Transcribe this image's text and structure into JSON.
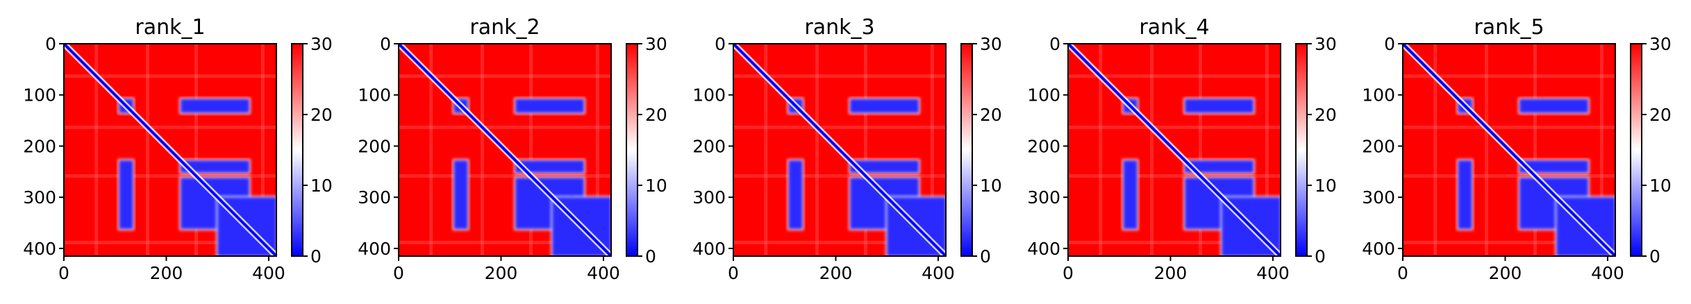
{
  "colors": {
    "low": "#0000ff",
    "mid": "#ffffff",
    "high": "#ff0000"
  },
  "chart_data": [
    {
      "type": "heatmap",
      "title": "rank_1",
      "xlim": [
        0,
        415
      ],
      "ylim": [
        415,
        0
      ],
      "xticks": [
        "0",
        "200",
        "400"
      ],
      "yticks": [
        "0",
        "100",
        "200",
        "300",
        "400"
      ],
      "colorbar": {
        "range": [
          0,
          30
        ],
        "ticks": [
          "0",
          "10",
          "20",
          "30"
        ],
        "colormap": "bwr"
      },
      "blocks": [
        {
          "x": [
            108,
            135
          ],
          "y": [
            108,
            135
          ]
        },
        {
          "x": [
            228,
            362
          ],
          "y": [
            108,
            135
          ]
        },
        {
          "x": [
            108,
            135
          ],
          "y": [
            228,
            362
          ]
        },
        {
          "x": [
            228,
            362
          ],
          "y": [
            228,
            252
          ]
        },
        {
          "x": [
            228,
            362
          ],
          "y": [
            262,
            362
          ]
        },
        {
          "x": [
            300,
            415
          ],
          "y": [
            300,
            415
          ]
        }
      ]
    },
    {
      "type": "heatmap",
      "title": "rank_2",
      "xlim": [
        0,
        415
      ],
      "ylim": [
        415,
        0
      ],
      "xticks": [
        "0",
        "200",
        "400"
      ],
      "yticks": [
        "0",
        "100",
        "200",
        "300",
        "400"
      ],
      "colorbar": {
        "range": [
          0,
          30
        ],
        "ticks": [
          "0",
          "10",
          "20",
          "30"
        ],
        "colormap": "bwr"
      },
      "blocks": [
        {
          "x": [
            108,
            135
          ],
          "y": [
            108,
            135
          ]
        },
        {
          "x": [
            228,
            362
          ],
          "y": [
            108,
            135
          ]
        },
        {
          "x": [
            108,
            135
          ],
          "y": [
            228,
            362
          ]
        },
        {
          "x": [
            228,
            362
          ],
          "y": [
            228,
            252
          ]
        },
        {
          "x": [
            228,
            362
          ],
          "y": [
            262,
            362
          ]
        },
        {
          "x": [
            300,
            415
          ],
          "y": [
            300,
            415
          ]
        }
      ]
    },
    {
      "type": "heatmap",
      "title": "rank_3",
      "xlim": [
        0,
        415
      ],
      "ylim": [
        415,
        0
      ],
      "xticks": [
        "0",
        "200",
        "400"
      ],
      "yticks": [
        "0",
        "100",
        "200",
        "300",
        "400"
      ],
      "colorbar": {
        "range": [
          0,
          30
        ],
        "ticks": [
          "0",
          "10",
          "20",
          "30"
        ],
        "colormap": "bwr"
      },
      "blocks": [
        {
          "x": [
            108,
            135
          ],
          "y": [
            108,
            135
          ]
        },
        {
          "x": [
            228,
            362
          ],
          "y": [
            108,
            135
          ]
        },
        {
          "x": [
            108,
            135
          ],
          "y": [
            228,
            362
          ]
        },
        {
          "x": [
            228,
            362
          ],
          "y": [
            228,
            252
          ]
        },
        {
          "x": [
            228,
            362
          ],
          "y": [
            262,
            362
          ]
        },
        {
          "x": [
            300,
            415
          ],
          "y": [
            300,
            415
          ]
        }
      ]
    },
    {
      "type": "heatmap",
      "title": "rank_4",
      "xlim": [
        0,
        415
      ],
      "ylim": [
        415,
        0
      ],
      "xticks": [
        "0",
        "200",
        "400"
      ],
      "yticks": [
        "0",
        "100",
        "200",
        "300",
        "400"
      ],
      "colorbar": {
        "range": [
          0,
          30
        ],
        "ticks": [
          "0",
          "10",
          "20",
          "30"
        ],
        "colormap": "bwr"
      },
      "blocks": [
        {
          "x": [
            108,
            135
          ],
          "y": [
            108,
            135
          ]
        },
        {
          "x": [
            228,
            362
          ],
          "y": [
            108,
            135
          ]
        },
        {
          "x": [
            108,
            135
          ],
          "y": [
            228,
            362
          ]
        },
        {
          "x": [
            228,
            362
          ],
          "y": [
            228,
            252
          ]
        },
        {
          "x": [
            228,
            362
          ],
          "y": [
            262,
            362
          ]
        },
        {
          "x": [
            300,
            415
          ],
          "y": [
            300,
            415
          ]
        }
      ]
    },
    {
      "type": "heatmap",
      "title": "rank_5",
      "xlim": [
        0,
        415
      ],
      "ylim": [
        415,
        0
      ],
      "xticks": [
        "0",
        "200",
        "400"
      ],
      "yticks": [
        "0",
        "100",
        "200",
        "300",
        "400"
      ],
      "colorbar": {
        "range": [
          0,
          30
        ],
        "ticks": [
          "0",
          "10",
          "20",
          "30"
        ],
        "colormap": "bwr"
      },
      "blocks": [
        {
          "x": [
            108,
            135
          ],
          "y": [
            108,
            135
          ]
        },
        {
          "x": [
            228,
            362
          ],
          "y": [
            108,
            135
          ]
        },
        {
          "x": [
            108,
            135
          ],
          "y": [
            228,
            362
          ]
        },
        {
          "x": [
            228,
            362
          ],
          "y": [
            228,
            252
          ]
        },
        {
          "x": [
            228,
            362
          ],
          "y": [
            262,
            362
          ]
        },
        {
          "x": [
            300,
            415
          ],
          "y": [
            300,
            415
          ]
        }
      ]
    }
  ]
}
